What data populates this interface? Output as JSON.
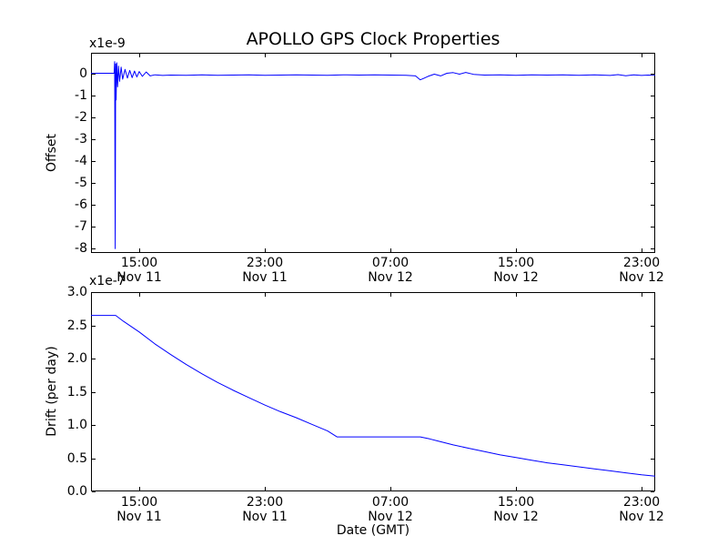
{
  "figure": {
    "title": "APOLLO GPS Clock Properties",
    "xlabel": "Date (GMT)",
    "background_color": "#ffffff",
    "axes_color": "#000000",
    "line_color": "#0000ff"
  },
  "chart_data": [
    {
      "type": "line",
      "subplot": "top",
      "title": "APOLLO GPS Clock Properties",
      "ylabel": "Offset",
      "offset_text": "x1e-9",
      "unit_multiplier": "1e-9",
      "grid": false,
      "legend": null,
      "ylim": [
        -8.2,
        0.958
      ],
      "xlim_hours": [
        11.93,
        47.87
      ],
      "ytick_values": [
        0,
        -1,
        -2,
        -3,
        -4,
        -5,
        -6,
        -7,
        -8
      ],
      "ytick_labels": [
        "0",
        "-1",
        "-2",
        "-3",
        "-4",
        "-5",
        "-6",
        "-7",
        "-8"
      ],
      "xticks": [
        {
          "hour": 15,
          "label": "15:00",
          "sub": "Nov 11"
        },
        {
          "hour": 23,
          "label": "23:00",
          "sub": "Nov 11"
        },
        {
          "hour": 31,
          "label": "07:00",
          "sub": "Nov 12"
        },
        {
          "hour": 39,
          "label": "15:00",
          "sub": "Nov 12"
        },
        {
          "hour": 47,
          "label": "23:00",
          "sub": "Nov 12"
        }
      ],
      "series": [
        {
          "name": "offset",
          "color": "#0000ff",
          "x_hours": [
            11.93,
            13.4,
            13.44,
            13.47,
            13.5,
            13.53,
            13.57,
            13.62,
            13.68,
            13.75,
            13.85,
            13.95,
            14.1,
            14.25,
            14.4,
            14.55,
            14.7,
            14.85,
            15.0,
            15.2,
            15.45,
            15.7,
            16.0,
            16.5,
            17.0,
            18.0,
            19.0,
            20.0,
            21.0,
            22.0,
            23.0,
            24.0,
            25.0,
            26.0,
            27.0,
            28.0,
            29.0,
            30.0,
            31.0,
            32.0,
            32.6,
            32.9,
            33.1,
            33.4,
            33.8,
            34.2,
            34.6,
            35.0,
            35.4,
            35.8,
            36.3,
            37.0,
            38.0,
            39.0,
            40.0,
            41.0,
            42.0,
            43.0,
            44.0,
            45.0,
            45.5,
            46.0,
            46.5,
            47.0,
            47.4,
            47.87
          ],
          "y": [
            0.02,
            0.02,
            0.55,
            -8.0,
            0.45,
            -1.2,
            0.5,
            -0.6,
            0.35,
            -0.35,
            0.3,
            -0.25,
            0.2,
            -0.2,
            0.15,
            -0.18,
            0.12,
            -0.15,
            0.1,
            -0.12,
            0.08,
            -0.1,
            -0.05,
            -0.08,
            -0.06,
            -0.07,
            -0.05,
            -0.07,
            -0.06,
            -0.05,
            -0.07,
            -0.06,
            -0.05,
            -0.06,
            -0.07,
            -0.05,
            -0.06,
            -0.05,
            -0.06,
            -0.07,
            -0.1,
            -0.28,
            -0.22,
            -0.12,
            -0.02,
            -0.1,
            0.02,
            0.05,
            -0.02,
            0.06,
            -0.03,
            -0.06,
            -0.05,
            -0.07,
            -0.05,
            -0.06,
            -0.05,
            -0.07,
            -0.05,
            -0.08,
            -0.04,
            -0.09,
            -0.05,
            -0.08,
            -0.06,
            -0.07
          ]
        }
      ]
    },
    {
      "type": "line",
      "subplot": "bottom",
      "title": "",
      "ylabel": "Drift (per day)",
      "xlabel": "Date (GMT)",
      "offset_text": "x1e-7",
      "unit_multiplier": "1e-7",
      "grid": false,
      "legend": null,
      "ylim": [
        0.0,
        3.0
      ],
      "xlim_hours": [
        11.93,
        47.87
      ],
      "ytick_values": [
        0.0,
        0.5,
        1.0,
        1.5,
        2.0,
        2.5,
        3.0
      ],
      "ytick_labels": [
        "0.0",
        "0.5",
        "1.0",
        "1.5",
        "2.0",
        "2.5",
        "3.0"
      ],
      "xticks": [
        {
          "hour": 15,
          "label": "15:00",
          "sub": "Nov 11"
        },
        {
          "hour": 23,
          "label": "23:00",
          "sub": "Nov 11"
        },
        {
          "hour": 31,
          "label": "07:00",
          "sub": "Nov 12"
        },
        {
          "hour": 39,
          "label": "15:00",
          "sub": "Nov 12"
        },
        {
          "hour": 47,
          "label": "23:00",
          "sub": "Nov 12"
        }
      ],
      "series": [
        {
          "name": "drift",
          "color": "#0000ff",
          "x_hours": [
            11.93,
            13.5,
            14.0,
            15.0,
            16.0,
            17.0,
            18.0,
            19.0,
            20.0,
            21.0,
            22.0,
            23.0,
            24.0,
            25.0,
            26.0,
            27.0,
            27.6,
            32.9,
            33.5,
            34.0,
            35.0,
            36.0,
            37.0,
            38.0,
            39.0,
            40.0,
            41.0,
            42.0,
            43.0,
            44.0,
            45.0,
            46.0,
            47.0,
            47.87
          ],
          "y": [
            2.65,
            2.65,
            2.56,
            2.4,
            2.22,
            2.06,
            1.91,
            1.77,
            1.64,
            1.52,
            1.41,
            1.3,
            1.2,
            1.11,
            1.01,
            0.91,
            0.82,
            0.82,
            0.79,
            0.76,
            0.7,
            0.65,
            0.6,
            0.55,
            0.51,
            0.47,
            0.43,
            0.4,
            0.37,
            0.34,
            0.31,
            0.28,
            0.25,
            0.23
          ]
        }
      ]
    }
  ]
}
